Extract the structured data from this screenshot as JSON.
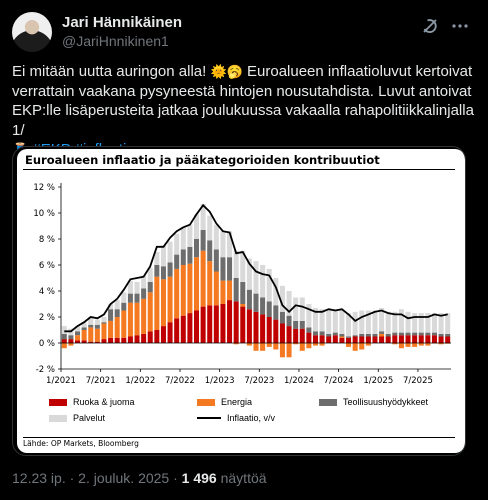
{
  "author": {
    "name": "Jari Hännikäinen",
    "handle": "@JariHnnikinen1"
  },
  "tweet": {
    "line1": "Ei mitään uutta auringon alla! ",
    "line1b": " Euroalueen inflaatioluvut kertoivat",
    "line2": "verrattain vaakana pysyneestä hintojen nousutahdista. Luvut antoivat",
    "line3": "EKP:lle lisäperusteita jatkaa joulukuussa vakaalla rahapolitiikkalinjalla 1/",
    "hashtags": [
      "#EKP",
      "#inflaatio"
    ]
  },
  "meta": {
    "time": "12.23 ip. · 2. jouluk. 2025 · ",
    "views_count": "1 496",
    "views_label": " näyttöä"
  },
  "icons": {
    "grok": "grok-icon",
    "more": "more-icon",
    "emoji_sun": "sun-emoji",
    "emoji_face": "face-emoji",
    "emoji_thread": "thread-emoji"
  },
  "chart_data": {
    "type": "bar",
    "title": "Euroalueen inflaatio ja pääkategorioiden kontribuutiot",
    "ylabel": "",
    "ylim": [
      -2,
      12
    ],
    "yticks": [
      "-2 %",
      "0 %",
      "2 %",
      "4 %",
      "6 %",
      "8 %",
      "10 %",
      "12 %"
    ],
    "xticks": [
      "1/2021",
      "7/2021",
      "1/2022",
      "7/2022",
      "1/2023",
      "7/2023",
      "1/2024",
      "7/2024",
      "1/2025",
      "7/2025"
    ],
    "x": [
      "1/2021",
      "2/2021",
      "3/2021",
      "4/2021",
      "5/2021",
      "6/2021",
      "7/2021",
      "8/2021",
      "9/2021",
      "10/2021",
      "11/2021",
      "12/2021",
      "1/2022",
      "2/2022",
      "3/2022",
      "4/2022",
      "5/2022",
      "6/2022",
      "7/2022",
      "8/2022",
      "9/2022",
      "10/2022",
      "11/2022",
      "12/2022",
      "1/2023",
      "2/2023",
      "3/2023",
      "4/2023",
      "5/2023",
      "6/2023",
      "7/2023",
      "8/2023",
      "9/2023",
      "10/2023",
      "11/2023",
      "12/2023",
      "1/2024",
      "2/2024",
      "3/2024",
      "4/2024",
      "5/2024",
      "6/2024",
      "7/2024",
      "8/2024",
      "9/2024",
      "10/2024",
      "11/2024",
      "12/2024",
      "1/2025",
      "2/2025",
      "3/2025",
      "4/2025",
      "5/2025",
      "6/2025",
      "7/2025",
      "8/2025",
      "9/2025",
      "10/2025",
      "11/2025"
    ],
    "series": [
      {
        "name": "Ruoka & juoma",
        "color": "#c00000",
        "values": [
          0.3,
          0.3,
          0.2,
          0.2,
          0.1,
          0.1,
          0.3,
          0.4,
          0.4,
          0.4,
          0.5,
          0.6,
          0.7,
          0.9,
          1.0,
          1.3,
          1.6,
          1.9,
          2.1,
          2.3,
          2.5,
          2.8,
          2.9,
          2.9,
          3.0,
          3.3,
          3.2,
          2.8,
          2.6,
          2.4,
          2.2,
          2.0,
          1.8,
          1.5,
          1.3,
          1.1,
          1.1,
          0.8,
          0.6,
          0.6,
          0.5,
          0.6,
          0.4,
          0.4,
          0.5,
          0.5,
          0.5,
          0.5,
          0.5,
          0.5,
          0.6,
          0.6,
          0.6,
          0.6,
          0.6,
          0.6,
          0.6,
          0.5,
          0.5
        ]
      },
      {
        "name": "Energia",
        "color": "#f47920",
        "values": [
          -0.4,
          -0.2,
          0.4,
          0.8,
          1.1,
          1.0,
          1.2,
          1.3,
          1.6,
          2.1,
          2.6,
          2.5,
          2.7,
          3.0,
          4.1,
          3.6,
          3.5,
          3.8,
          3.9,
          3.8,
          4.1,
          4.3,
          3.4,
          2.6,
          1.8,
          1.5,
          -0.1,
          0.2,
          -0.2,
          -0.6,
          -0.6,
          -0.3,
          -0.5,
          -1.1,
          -1.1,
          -0.1,
          -0.6,
          -0.4,
          -0.2,
          -0.2,
          0.0,
          0.0,
          0.1,
          -0.3,
          -0.6,
          -0.5,
          -0.2,
          0.0,
          0.2,
          0.0,
          -0.1,
          -0.4,
          -0.3,
          -0.3,
          -0.2,
          -0.2,
          -0.04,
          -0.1,
          -0.05
        ]
      },
      {
        "name": "Teollisuushyödykkeet",
        "color": "#6d6d6d",
        "values": [
          0.4,
          0.3,
          0.3,
          0.2,
          0.2,
          0.3,
          0.1,
          0.9,
          0.6,
          0.6,
          0.7,
          0.7,
          0.8,
          0.8,
          0.9,
          1.0,
          1.1,
          1.1,
          1.2,
          1.3,
          1.4,
          1.6,
          1.6,
          1.7,
          1.8,
          1.8,
          1.8,
          1.7,
          1.5,
          1.4,
          1.3,
          1.2,
          1.1,
          0.9,
          0.8,
          0.6,
          0.6,
          0.4,
          0.3,
          0.3,
          0.2,
          0.2,
          0.2,
          0.1,
          0.1,
          0.2,
          0.2,
          0.2,
          0.2,
          0.2,
          0.2,
          0.2,
          0.2,
          0.2,
          0.2,
          0.2,
          0.2,
          0.2,
          0.2
        ]
      },
      {
        "name": "Palvelut",
        "color": "#d9d9d9",
        "values": [
          0.6,
          0.5,
          0.4,
          0.4,
          0.6,
          0.4,
          0.4,
          0.4,
          0.7,
          0.8,
          1.0,
          0.9,
          1.0,
          1.1,
          1.0,
          1.6,
          1.6,
          1.6,
          1.7,
          1.7,
          1.9,
          2.0,
          1.9,
          1.9,
          2.0,
          2.0,
          2.1,
          2.4,
          2.4,
          2.5,
          2.5,
          2.5,
          2.1,
          2.0,
          1.9,
          1.8,
          1.8,
          1.8,
          1.8,
          1.7,
          1.8,
          1.8,
          1.8,
          1.8,
          1.8,
          1.8,
          1.8,
          1.8,
          1.8,
          1.7,
          1.6,
          1.8,
          1.6,
          1.5,
          1.5,
          1.5,
          1.5,
          1.6,
          1.6
        ]
      }
    ],
    "line": {
      "name": "Inflaatio, v/v",
      "color": "#000000",
      "values": [
        0.9,
        0.9,
        1.3,
        1.6,
        2.0,
        1.9,
        2.2,
        3.0,
        3.4,
        4.1,
        4.9,
        5.0,
        5.1,
        5.9,
        7.4,
        7.4,
        8.1,
        8.6,
        8.9,
        9.1,
        9.9,
        10.6,
        10.1,
        9.2,
        8.6,
        8.5,
        6.9,
        7.0,
        6.1,
        5.5,
        5.3,
        5.2,
        4.3,
        2.9,
        2.4,
        2.9,
        2.8,
        2.6,
        2.4,
        2.4,
        2.6,
        2.5,
        2.6,
        2.2,
        1.7,
        2.0,
        2.2,
        2.4,
        2.5,
        2.3,
        2.2,
        2.2,
        1.9,
        2.0,
        2.0,
        2.0,
        2.2,
        2.1,
        2.2
      ]
    },
    "legend": "bottom",
    "grid": false,
    "source": "Lähde: OP Markets, Bloomberg"
  }
}
